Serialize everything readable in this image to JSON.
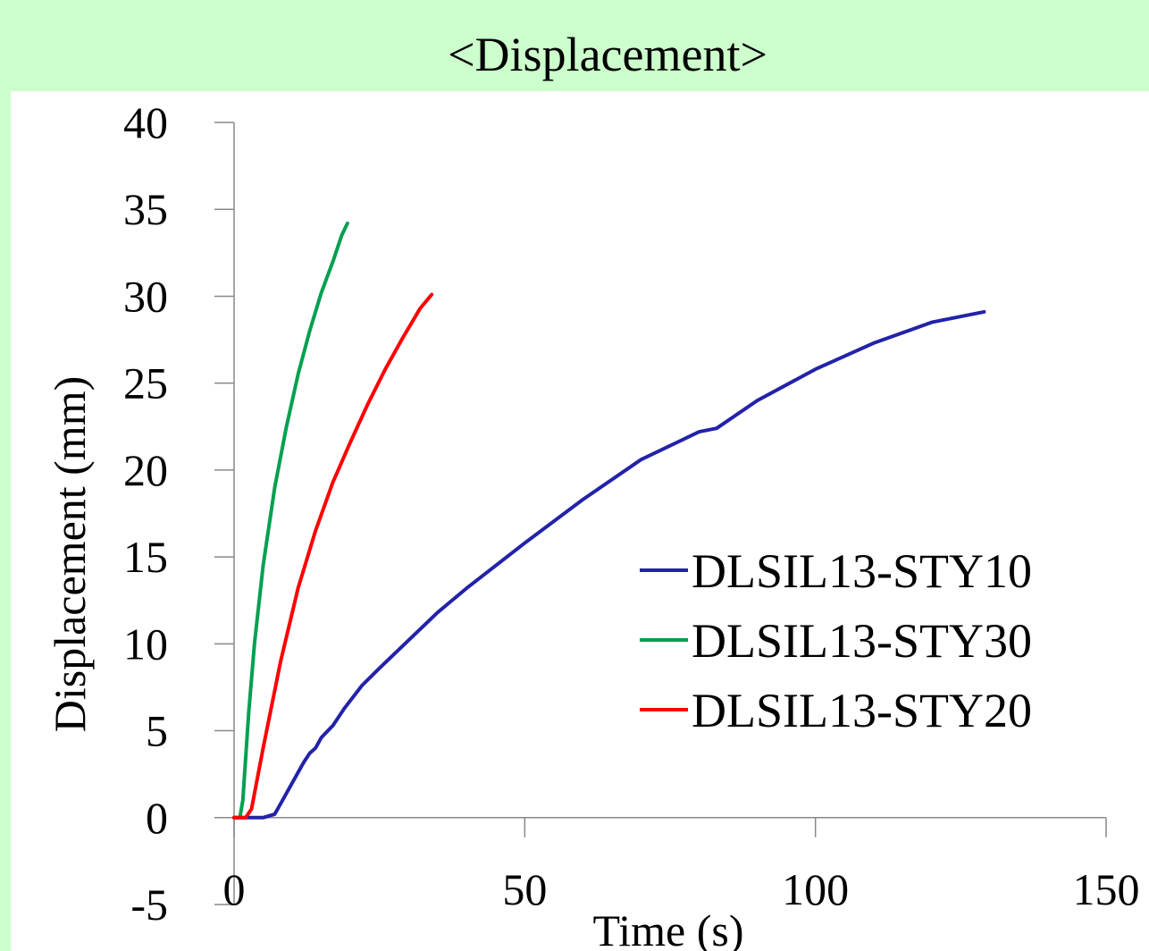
{
  "chart_data": {
    "type": "line",
    "title": "<Displacement>",
    "xlabel": "Time (s)",
    "ylabel": "Displacement (mm)",
    "xlim": [
      0,
      150
    ],
    "ylim": [
      -5,
      40
    ],
    "x_ticks": [
      "0",
      "50",
      "100",
      "150"
    ],
    "y_ticks": [
      "40",
      "35",
      "30",
      "25",
      "20",
      "15",
      "10",
      "5",
      "0",
      "-5"
    ],
    "grid": false,
    "legend_position": "right-middle",
    "series": [
      {
        "name": "DLSIL13-STY10",
        "color": "#2222aa",
        "points": [
          [
            0,
            0
          ],
          [
            5,
            0
          ],
          [
            7,
            0.2
          ],
          [
            8,
            0.8
          ],
          [
            10,
            2
          ],
          [
            12,
            3.2
          ],
          [
            13,
            3.7
          ],
          [
            14,
            4
          ],
          [
            15,
            4.6
          ],
          [
            17,
            5.3
          ],
          [
            19,
            6.3
          ],
          [
            22,
            7.6
          ],
          [
            25,
            8.6
          ],
          [
            30,
            10.2
          ],
          [
            35,
            11.8
          ],
          [
            40,
            13.2
          ],
          [
            45,
            14.5
          ],
          [
            50,
            15.8
          ],
          [
            60,
            18.3
          ],
          [
            70,
            20.6
          ],
          [
            80,
            22.2
          ],
          [
            83,
            22.4
          ],
          [
            90,
            24
          ],
          [
            100,
            25.8
          ],
          [
            110,
            27.3
          ],
          [
            120,
            28.5
          ],
          [
            129,
            29.1
          ]
        ]
      },
      {
        "name": "DLSIL13-STY30",
        "color": "#00a050",
        "points": [
          [
            0,
            0
          ],
          [
            1,
            0
          ],
          [
            1.5,
            1
          ],
          [
            2.5,
            6
          ],
          [
            3.5,
            10
          ],
          [
            5,
            14.5
          ],
          [
            7,
            19
          ],
          [
            9,
            22.5
          ],
          [
            11,
            25.5
          ],
          [
            13,
            28
          ],
          [
            15,
            30.2
          ],
          [
            17,
            32
          ],
          [
            18.5,
            33.5
          ],
          [
            19.5,
            34.2
          ]
        ]
      },
      {
        "name": "DLSIL13-STY20",
        "color": "#ff0000",
        "points": [
          [
            0,
            0
          ],
          [
            2,
            0
          ],
          [
            3,
            0.5
          ],
          [
            5,
            4
          ],
          [
            8,
            9
          ],
          [
            11,
            13.2
          ],
          [
            14,
            16.5
          ],
          [
            17,
            19.3
          ],
          [
            20,
            21.6
          ],
          [
            23,
            23.8
          ],
          [
            26,
            25.8
          ],
          [
            29,
            27.6
          ],
          [
            32,
            29.3
          ],
          [
            34,
            30.1
          ]
        ]
      }
    ]
  }
}
